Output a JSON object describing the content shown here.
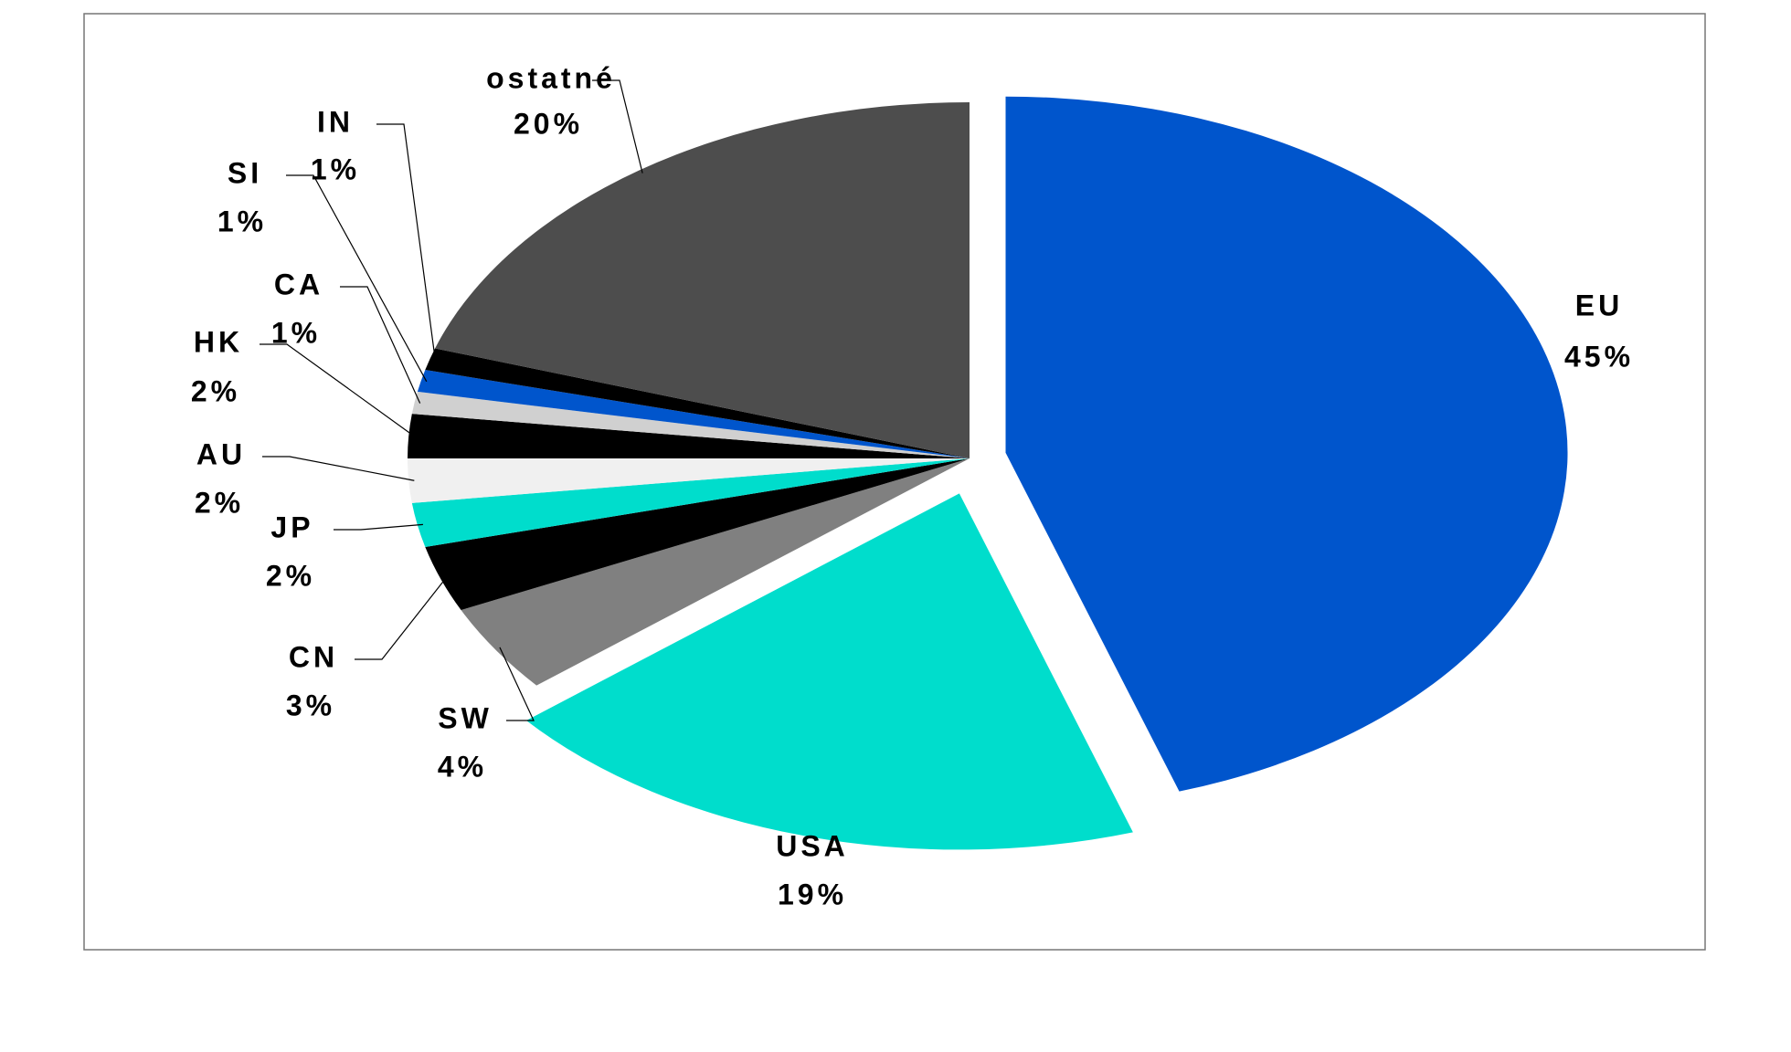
{
  "chart_data": {
    "type": "pie",
    "categories": [
      "EU",
      "USA",
      "SW",
      "CN",
      "JP",
      "AU",
      "HK",
      "CA",
      "SI",
      "IN",
      "ostatné"
    ],
    "values": [
      45,
      19,
      4,
      3,
      2,
      2,
      2,
      1,
      1,
      1,
      20
    ],
    "value_labels": [
      "45%",
      "19%",
      "4%",
      "3%",
      "2%",
      "2%",
      "2%",
      "1%",
      "1%",
      "1%",
      "20%"
    ],
    "colors": [
      "#0055cc",
      "#00ddcc",
      "#808080",
      "#000000",
      "#00ddcc",
      "#f0f0f0",
      "#000000",
      "#d0d0d0",
      "#0055cc",
      "#000000",
      "#4d4d4d"
    ]
  }
}
